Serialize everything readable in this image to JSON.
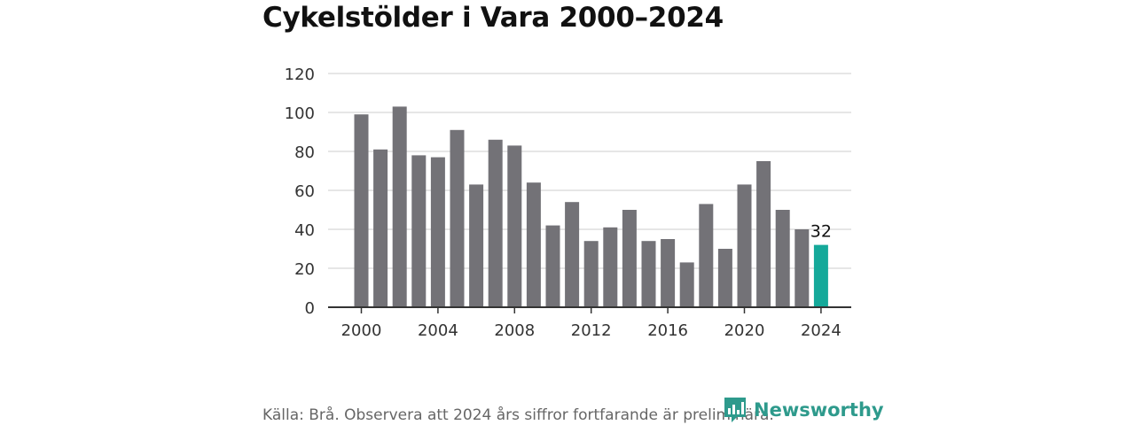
{
  "header": {
    "title": "Cykelstölder i Vara 2000–2024"
  },
  "footer": {
    "source": "Källa: Brå. Observera att 2024 års siffror fortfarande är preliminära.",
    "brand": "Newsworthy"
  },
  "colors": {
    "bar": "#737277",
    "highlight": "#15a99a",
    "grid": "#dddddd",
    "axis": "#333333",
    "brand": "#2e9a8c"
  },
  "chart_data": {
    "type": "bar",
    "title": "Cykelstölder i Vara 2000–2024",
    "xlabel": "",
    "ylabel": "",
    "categories": [
      2000,
      2001,
      2002,
      2003,
      2004,
      2005,
      2006,
      2007,
      2008,
      2009,
      2010,
      2011,
      2012,
      2013,
      2014,
      2015,
      2016,
      2017,
      2018,
      2019,
      2020,
      2021,
      2022,
      2023,
      2024
    ],
    "values": [
      99,
      81,
      103,
      78,
      77,
      91,
      63,
      86,
      83,
      64,
      42,
      54,
      34,
      41,
      50,
      34,
      35,
      23,
      53,
      30,
      63,
      75,
      50,
      40,
      32
    ],
    "highlight_index": 24,
    "highlight_label": "32",
    "ylim": [
      0,
      120
    ],
    "yticks": [
      0,
      20,
      40,
      60,
      80,
      100,
      120
    ],
    "xticks": [
      2000,
      2004,
      2008,
      2012,
      2016,
      2020,
      2024
    ],
    "grid": true,
    "legend": "none"
  }
}
